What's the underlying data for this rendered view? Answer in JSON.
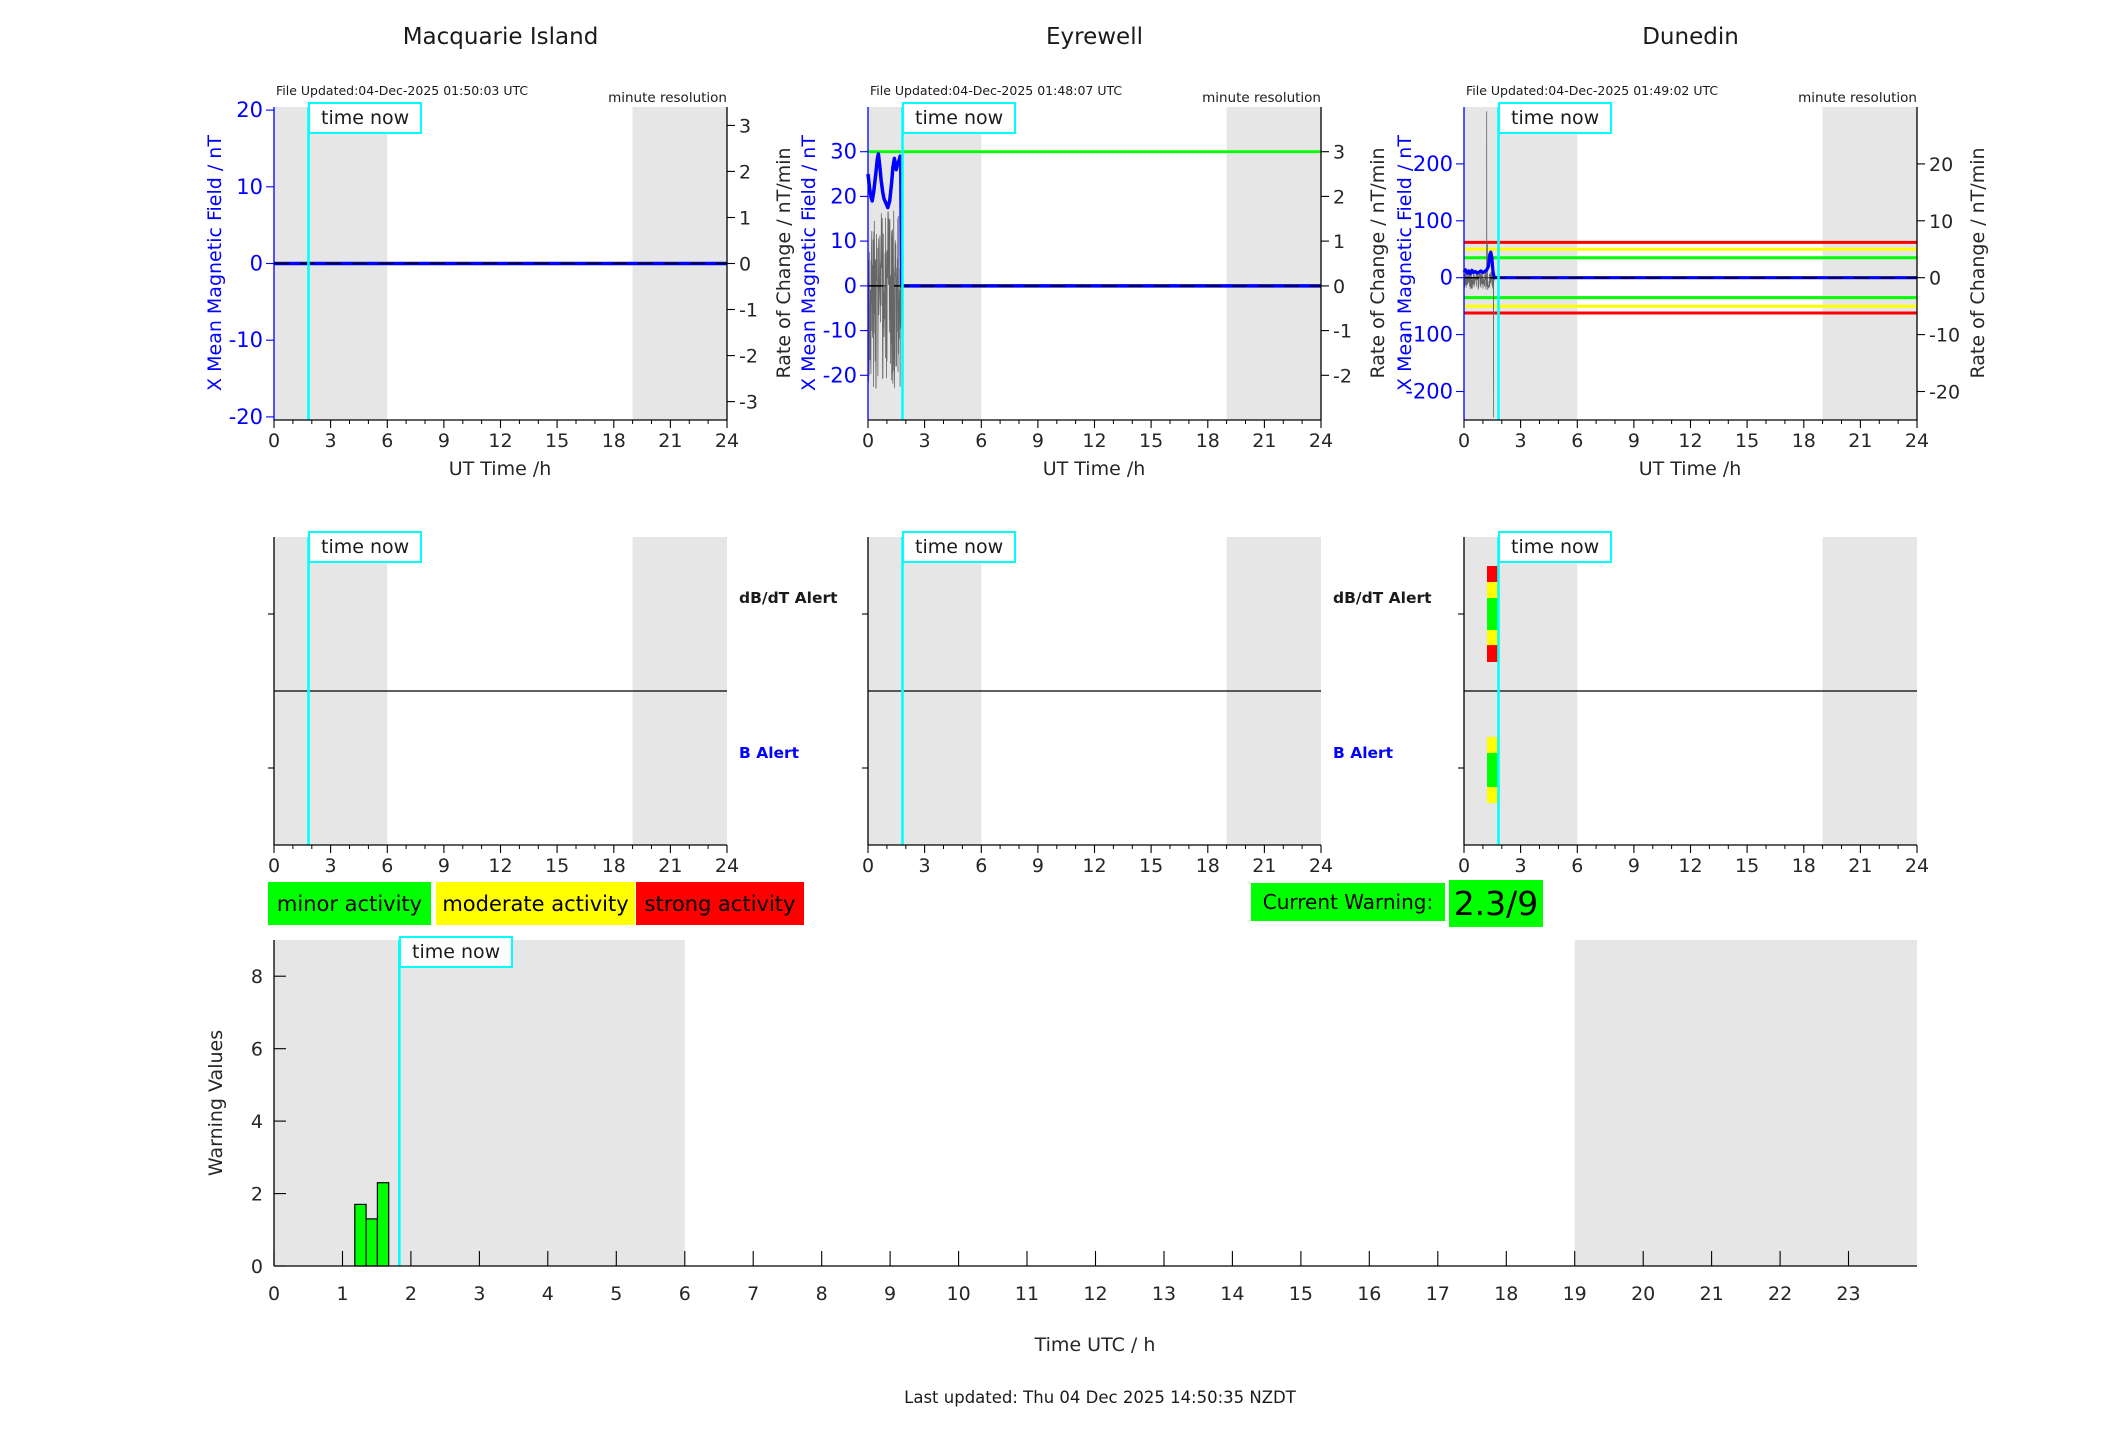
{
  "page": {
    "stations": [
      {
        "file_updated": "File Updated:04-Dec-2025 01:50:03 UTC",
        "resolution": "minute resolution"
      },
      {
        "file_updated": "File Updated:04-Dec-2025 01:48:07 UTC",
        "resolution": "minute resolution"
      },
      {
        "file_updated": "File Updated:04-Dec-2025 01:49:02 UTC",
        "resolution": "minute resolution"
      }
    ],
    "labels": {
      "time_now": "time now"
    },
    "legend": [
      {
        "label": "minor activity",
        "color": "#00ff00"
      },
      {
        "label": "moderate activity",
        "color": "#ffff00"
      },
      {
        "label": "strong activity",
        "color": "#ff0000"
      }
    ],
    "current_warning": {
      "label": "Current Warning:",
      "value": "2.3/9",
      "color": "#00ff00"
    },
    "footer": "Last updated: Thu 04 Dec 2025 14:50:35 NZDT",
    "colors": {
      "night_band": "#e6e6e6",
      "time_now_line": "#00ffff",
      "field_line": "#0000ff"
    }
  },
  "chart_data": [
    {
      "id": "macquarie-field",
      "type": "line",
      "title": "Macquarie Island",
      "xlabel": "UT Time /h",
      "ylabel_left": "X Mean Magnetic Field / nT",
      "ylabel_right": "Rate of Change / nT/min",
      "xlim": [
        0,
        24
      ],
      "xticks": [
        0,
        3,
        6,
        9,
        12,
        15,
        18,
        21,
        24
      ],
      "x_minor_step": 1,
      "ylim_left": [
        -20.4,
        20.4
      ],
      "yticks_left": [
        -20,
        -10,
        0,
        10,
        20
      ],
      "ylim_right": [
        -3.4,
        3.4
      ],
      "yticks_right": [
        -3,
        -2,
        -1,
        0,
        1,
        2,
        3
      ],
      "night_bands": [
        [
          0,
          6
        ],
        [
          19,
          24
        ]
      ],
      "time_now": 1.83,
      "zero_dashed": true,
      "left_axis_color": "#0000ff",
      "ytick_color_left": "#0000ff",
      "series": [
        {
          "name": "x-mean-field",
          "axis": "left",
          "color": "#0000ff",
          "width": 3.5,
          "points": [
            [
              0,
              0
            ],
            [
              24,
              0
            ]
          ]
        }
      ]
    },
    {
      "id": "eyrewell-field",
      "type": "line",
      "title": "Eyrewell",
      "xlabel": "UT Time /h",
      "ylabel_left": "X Mean Magnetic Field / nT",
      "ylabel_right": "Rate of Change / nT/min",
      "xlim": [
        0,
        24
      ],
      "xticks": [
        0,
        3,
        6,
        9,
        12,
        15,
        18,
        21,
        24
      ],
      "x_minor_step": 1,
      "ylim_left": [
        -30,
        40
      ],
      "yticks_left": [
        -20,
        -10,
        0,
        10,
        20,
        30
      ],
      "ylim_right": [
        -3,
        4
      ],
      "yticks_right": [
        -2,
        -1,
        0,
        1,
        2,
        3
      ],
      "night_bands": [
        [
          0,
          6
        ],
        [
          19,
          24
        ]
      ],
      "time_now": 1.83,
      "zero_dashed": true,
      "left_axis_color": "#0000ff",
      "ytick_color_left": "#0000ff",
      "threshold_lines": [
        {
          "axis": "left",
          "value": 30,
          "color": "#00ff00",
          "width": 2.8
        }
      ],
      "series": [
        {
          "name": "rate-of-change-noise",
          "type": "noise",
          "axis": "right",
          "color": "#666666",
          "width": 0.8,
          "t": [
            0.02,
            1.78
          ],
          "mean": -0.3,
          "amp": 2.0,
          "dt": 0.012,
          "seed": 3
        },
        {
          "name": "baseline-segment",
          "axis": "left",
          "color": "#333333",
          "width": 1.2,
          "points": [
            [
              0,
              0
            ],
            [
              0.95,
              0
            ]
          ]
        },
        {
          "name": "x-mean-field",
          "axis": "left",
          "color": "#0000ff",
          "width": 3.5,
          "points": [
            [
              0,
              25
            ],
            [
              0.08,
              22
            ],
            [
              0.15,
              20
            ],
            [
              0.22,
              19
            ],
            [
              0.3,
              21
            ],
            [
              0.4,
              24.5
            ],
            [
              0.5,
              28.5
            ],
            [
              0.55,
              29.5
            ],
            [
              0.62,
              27
            ],
            [
              0.7,
              23.5
            ],
            [
              0.78,
              21
            ],
            [
              0.85,
              19.5
            ],
            [
              0.95,
              18.5
            ],
            [
              1.05,
              17.5
            ],
            [
              1.15,
              19
            ],
            [
              1.25,
              23
            ],
            [
              1.32,
              26.5
            ],
            [
              1.4,
              28.5
            ],
            [
              1.5,
              26
            ],
            [
              1.58,
              27.5
            ],
            [
              1.65,
              28
            ],
            [
              1.7,
              29
            ],
            [
              1.74,
              27
            ],
            [
              1.78,
              0
            ],
            [
              24,
              0
            ]
          ]
        }
      ]
    },
    {
      "id": "dunedin-field",
      "type": "line",
      "title": "Dunedin",
      "xlabel": "UT Time /h",
      "ylabel_left": "X Mean Magnetic Field / nT",
      "ylabel_right": "Rate of Change / nT/min",
      "xlim": [
        0,
        24
      ],
      "xticks": [
        0,
        3,
        6,
        9,
        12,
        15,
        18,
        21,
        24
      ],
      "x_minor_step": 1,
      "ylim_left": [
        -250,
        300
      ],
      "yticks_left": [
        -200,
        -100,
        0,
        100,
        200
      ],
      "ylim_right": [
        -25,
        30
      ],
      "yticks_right": [
        -20,
        -10,
        0,
        10,
        20
      ],
      "night_bands": [
        [
          0,
          6
        ],
        [
          19,
          24
        ]
      ],
      "time_now": 1.83,
      "zero_dashed": true,
      "left_axis_color": "#0000ff",
      "ytick_color_left": "#0000ff",
      "threshold_lines": [
        {
          "axis": "right",
          "value": 6.2,
          "color": "#ff0000",
          "width": 3
        },
        {
          "axis": "right",
          "value": 5,
          "color": "#ffff00",
          "width": 3
        },
        {
          "axis": "right",
          "value": 3.5,
          "color": "#00ff00",
          "width": 3
        },
        {
          "axis": "right",
          "value": -3.5,
          "color": "#00ff00",
          "width": 3
        },
        {
          "axis": "right",
          "value": -5,
          "color": "#ffff00",
          "width": 3
        },
        {
          "axis": "right",
          "value": -6.2,
          "color": "#ff0000",
          "width": 3
        }
      ],
      "series": [
        {
          "name": "rate-of-change-noise",
          "type": "noise",
          "axis": "left",
          "color": "#666666",
          "width": 0.8,
          "t": [
            0.02,
            1.62
          ],
          "mean": -5,
          "amp": 16,
          "dt": 0.012,
          "seed": 9,
          "spikes": [
            [
              1.2,
              292
            ],
            [
              1.24,
              60
            ],
            [
              1.56,
              -245
            ]
          ]
        },
        {
          "name": "baseline-segment",
          "axis": "left",
          "color": "#333333",
          "width": 1.2,
          "points": [
            [
              0,
              0
            ],
            [
              1.55,
              0
            ]
          ]
        },
        {
          "name": "x-mean-field",
          "axis": "left",
          "color": "#0000ff",
          "width": 3.2,
          "points": [
            [
              0,
              10
            ],
            [
              0.08,
              14
            ],
            [
              0.16,
              8
            ],
            [
              0.25,
              12
            ],
            [
              0.33,
              7
            ],
            [
              0.42,
              13
            ],
            [
              0.5,
              9
            ],
            [
              0.6,
              11
            ],
            [
              0.7,
              8
            ],
            [
              0.8,
              10
            ],
            [
              0.9,
              12
            ],
            [
              1.0,
              9
            ],
            [
              1.1,
              11
            ],
            [
              1.2,
              14
            ],
            [
              1.3,
              20
            ],
            [
              1.36,
              40
            ],
            [
              1.42,
              45
            ],
            [
              1.48,
              35
            ],
            [
              1.53,
              12
            ],
            [
              1.6,
              0
            ],
            [
              24,
              0
            ]
          ]
        }
      ]
    },
    {
      "id": "macquarie-alert",
      "type": "alert-strip",
      "rows": [
        "dB/dT Alert",
        "B Alert"
      ],
      "xlim": [
        0,
        24
      ],
      "xticks": [
        0,
        3,
        6,
        9,
        12,
        15,
        18,
        21,
        24
      ],
      "x_minor_step": 1,
      "night_bands": [
        [
          0,
          6
        ],
        [
          19,
          24
        ]
      ],
      "time_now": 1.83,
      "divider": true,
      "left_quarter_ticks": true,
      "segments": []
    },
    {
      "id": "eyrewell-alert",
      "type": "alert-strip",
      "rows": [
        "dB/dT Alert",
        "B Alert"
      ],
      "xlim": [
        0,
        24
      ],
      "xticks": [
        0,
        3,
        6,
        9,
        12,
        15,
        18,
        21,
        24
      ],
      "x_minor_step": 1,
      "night_bands": [
        [
          0,
          6
        ],
        [
          19,
          24
        ]
      ],
      "time_now": 1.83,
      "divider": true,
      "left_quarter_ticks": true,
      "segments": []
    },
    {
      "id": "dunedin-alert",
      "type": "alert-strip",
      "rows": [
        "dB/dT Alert",
        "B Alert"
      ],
      "xlim": [
        0,
        24
      ],
      "xticks": [
        0,
        3,
        6,
        9,
        12,
        15,
        18,
        21,
        24
      ],
      "x_minor_step": 1,
      "night_bands": [
        [
          0,
          6
        ],
        [
          19,
          24
        ]
      ],
      "time_now": 1.83,
      "divider": true,
      "left_quarter_ticks": true,
      "segments": [
        {
          "row": "dB/dT Alert",
          "x": [
            1.22,
            1.83
          ],
          "parts": [
            {
              "color": "#ff0000",
              "y": [
                0.094,
                0.146
              ]
            },
            {
              "color": "#ffff00",
              "y": [
                0.146,
                0.198
              ]
            },
            {
              "color": "#00ff00",
              "y": [
                0.198,
                0.302
              ]
            },
            {
              "color": "#ffff00",
              "y": [
                0.302,
                0.351
              ]
            },
            {
              "color": "#ff0000",
              "y": [
                0.351,
                0.406
              ]
            }
          ]
        },
        {
          "row": "B Alert",
          "x": [
            1.22,
            1.83
          ],
          "parts": [
            {
              "color": "#ffff00",
              "y": [
                0.649,
                0.701
              ]
            },
            {
              "color": "#00ff00",
              "y": [
                0.701,
                0.812
              ]
            },
            {
              "color": "#ffff00",
              "y": [
                0.812,
                0.864
              ]
            }
          ]
        }
      ]
    },
    {
      "id": "warning-values",
      "type": "bar",
      "title": "",
      "xlabel": "Time UTC / h",
      "ylabel": "Warning Values",
      "xlim": [
        0,
        24
      ],
      "xticks": [
        0,
        1,
        2,
        3,
        4,
        5,
        6,
        7,
        8,
        9,
        10,
        11,
        12,
        13,
        14,
        15,
        16,
        17,
        18,
        19,
        20,
        21,
        22,
        23
      ],
      "tick_dir": "in",
      "ylim": [
        0,
        9
      ],
      "yticks": [
        0,
        2,
        4,
        6,
        8
      ],
      "night_bands": [
        [
          0,
          6
        ],
        [
          19,
          24
        ]
      ],
      "time_now": 1.83,
      "bars": {
        "x_edges": [
          1.18,
          1.345,
          1.51,
          1.675
        ],
        "values": [
          1.7,
          1.3,
          2.3
        ],
        "color": "#00ff00",
        "edge": "#000000"
      }
    }
  ]
}
